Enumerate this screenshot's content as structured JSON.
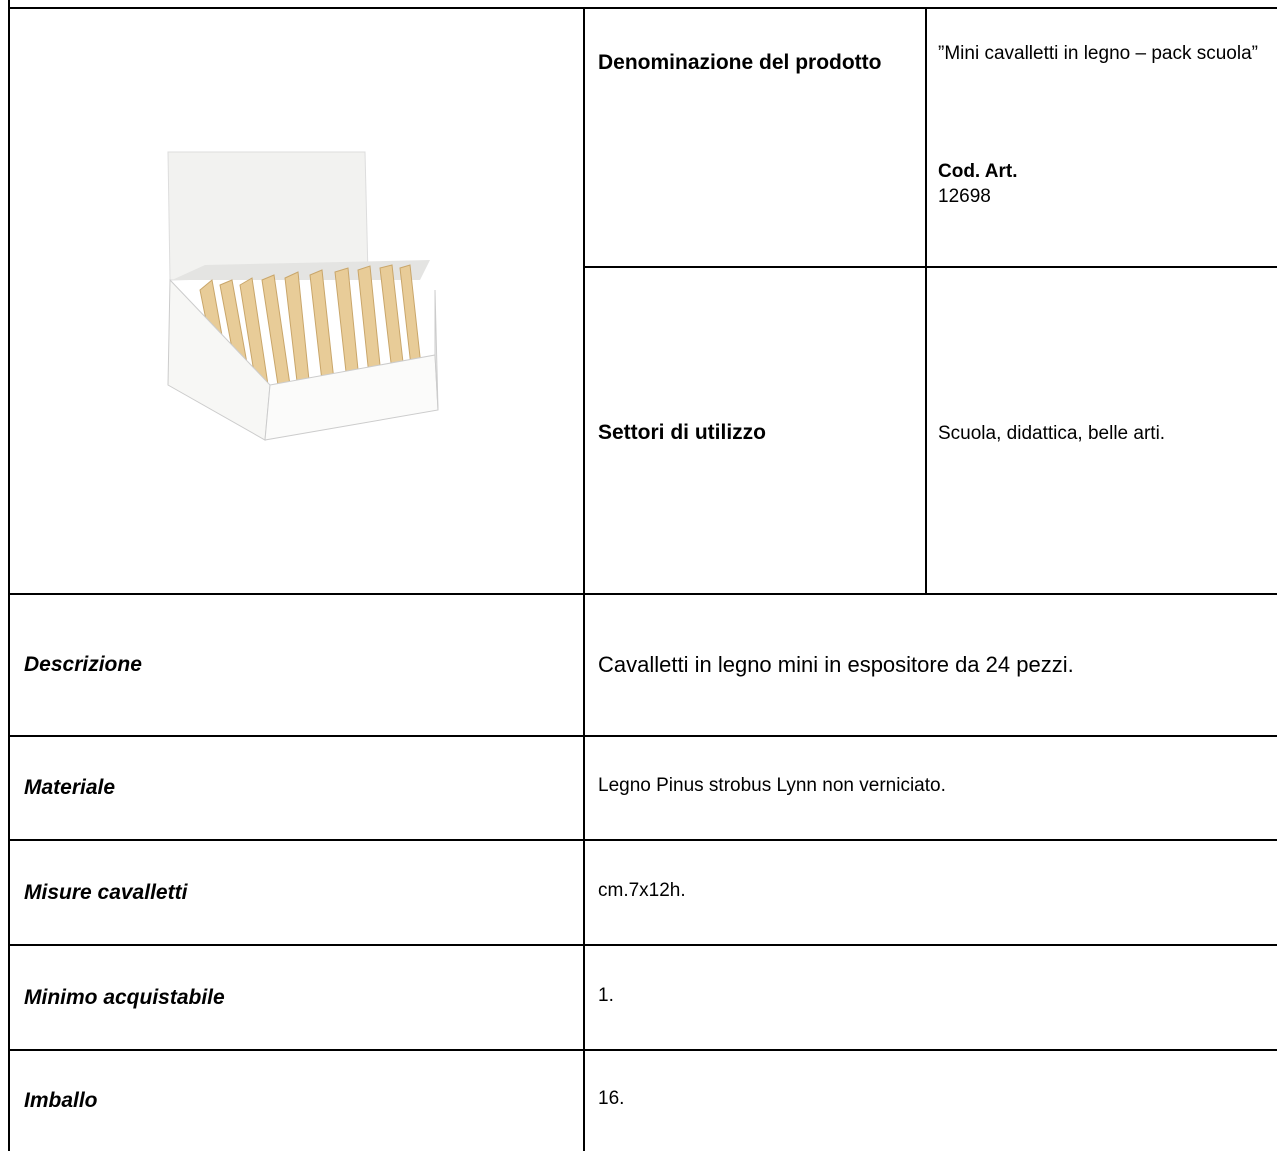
{
  "product": {
    "name_label": "Denominazione del prodotto",
    "name": "”Mini cavalletti in legno – pack scuola”",
    "code_label": "Cod. Art.",
    "code": "12698",
    "sectors_label": "Settori di utilizzo",
    "sectors": "Scuola, didattica, belle arti."
  },
  "details": {
    "rows": [
      [
        "Descrizione",
        "Cavalletti in legno mini in espositore da 24 pezzi."
      ],
      [
        "Materiale",
        "Legno Pinus strobus Lynn non verniciato."
      ],
      [
        "Misure cavalletti",
        "cm.7x12h."
      ],
      [
        "Minimo acquistabile",
        "1."
      ],
      [
        "Imballo",
        "16."
      ]
    ]
  }
}
